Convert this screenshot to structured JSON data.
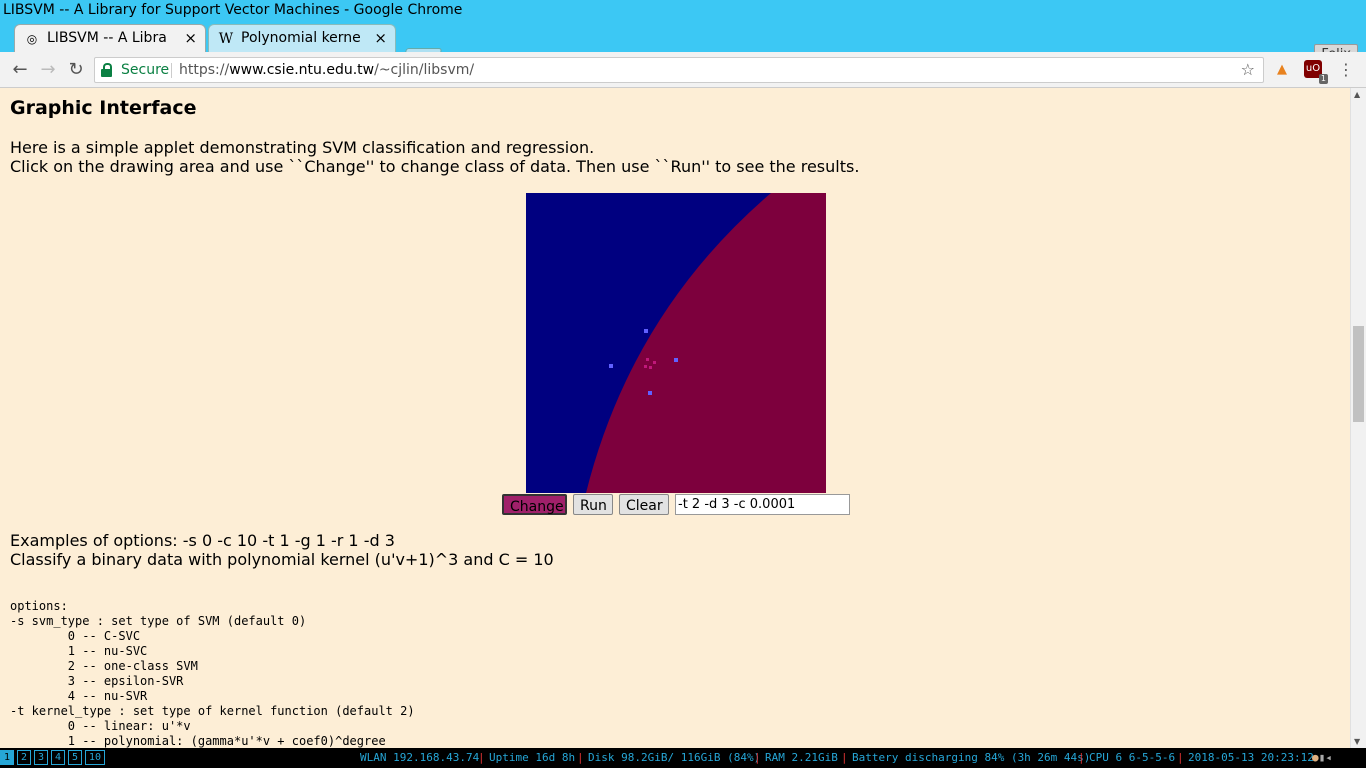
{
  "window": {
    "title": "LIBSVM -- A Library for Support Vector Machines - Google Chrome"
  },
  "tabs": [
    {
      "label": "LIBSVM -- A Library for Support Vector Machines",
      "close": "×",
      "favicon": "libsvm-favicon"
    },
    {
      "label": "Polynomial kernel - Wikipedia",
      "close": "×",
      "favicon": "W"
    }
  ],
  "profile": {
    "name": "Felix"
  },
  "toolbar": {
    "back": "←",
    "forward": "→",
    "reload": "↻",
    "secure_label": "Secure",
    "url_scheme": "https://",
    "url_host": "www.csie.ntu.edu.tw",
    "url_path": "/~cjlin/libsvm/",
    "star": "☆",
    "menu": "⋮",
    "ublock_count": "1"
  },
  "page": {
    "heading": "Graphic Interface",
    "intro1": "Here is a simple applet demonstrating SVM classification and regression.",
    "intro2": "Click on the drawing area and use ``Change'' to change class of data. Then use ``Run'' to see the results.",
    "applet": {
      "colors": {
        "class1_bg": "#000080",
        "class2_bg": "#7d003d",
        "class1_point": "#6060ff",
        "class2_point": "#c0187a"
      },
      "buttons": {
        "change": "Change",
        "run": "Run",
        "clear": "Clear"
      },
      "options_value": "-t 2 -d 3 -c 0.0001"
    },
    "example1": "Examples of options: -s 0 -c 10 -t 1 -g 1 -r 1 -d 3",
    "example2": "Classify a binary data with polynomial kernel (u'v+1)^3 and C = 10",
    "options_text": "options:\n-s svm_type : set type of SVM (default 0)\n        0 -- C-SVC\n        1 -- nu-SVC\n        2 -- one-class SVM\n        3 -- epsilon-SVR\n        4 -- nu-SVR\n-t kernel_type : set type of kernel function (default 2)\n        0 -- linear: u'*v\n        1 -- polynomial: (gamma*u'*v + coef0)^degree"
  },
  "statusbar": {
    "workspaces": [
      "1",
      "2",
      "3",
      "4",
      "5",
      "10"
    ],
    "active_workspace": "1",
    "wlan": "WLAN 192.168.43.74",
    "uptime": "Uptime 16d 8h",
    "disk": "Disk 98.2GiB/ 116GiB (84%)",
    "ram": "RAM 2.21GiB",
    "battery": "Battery discharging 84% (3h 26m 44s)",
    "cpu": "CPU 6 6-5-5-6",
    "datetime": "2018-05-13 20:23:12"
  }
}
